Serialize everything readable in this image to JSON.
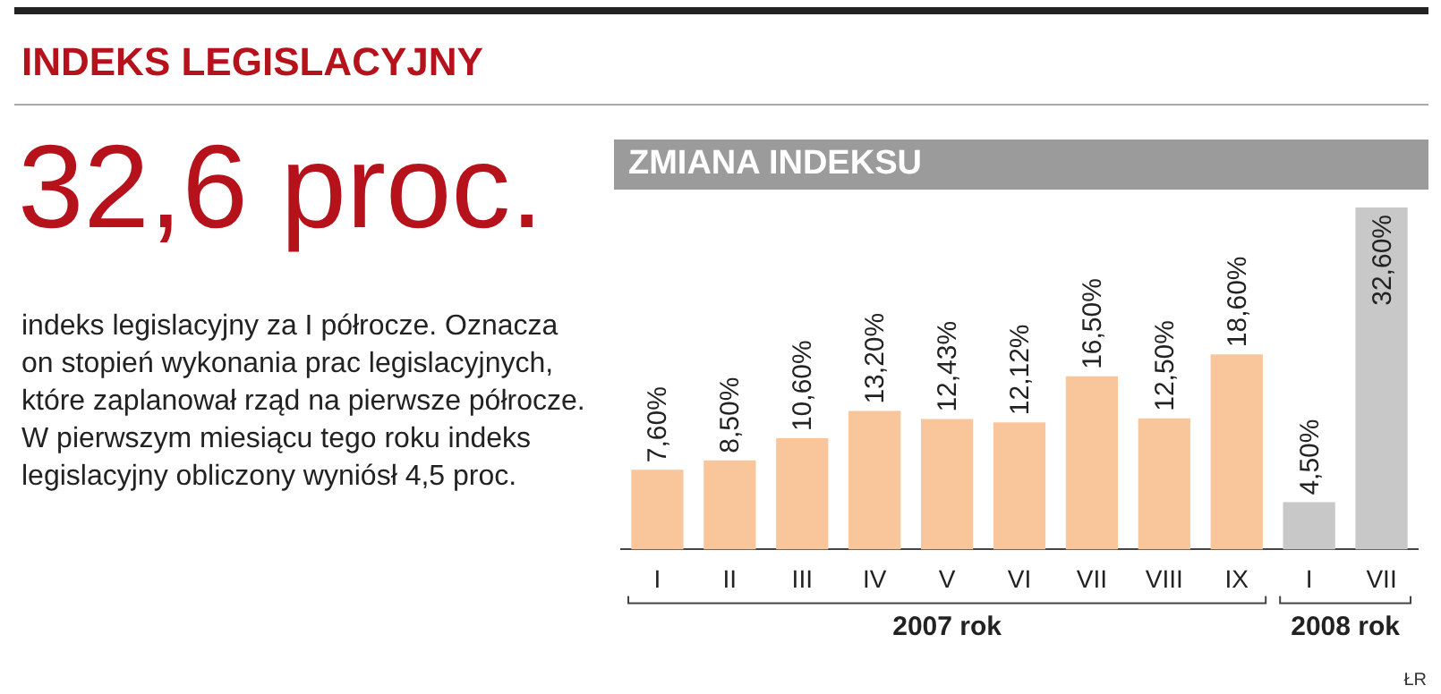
{
  "chart_data": {
    "type": "bar",
    "title": "INDEKS LEGISLACYJNY",
    "subtitle": "ZMIANA INDEKSU",
    "categories": [
      "I",
      "II",
      "III",
      "IV",
      "V",
      "VI",
      "VII",
      "VIII",
      "IX",
      "I",
      "VII"
    ],
    "values": [
      7.6,
      8.5,
      10.6,
      13.2,
      12.43,
      12.12,
      16.5,
      12.5,
      18.6,
      4.5,
      32.6
    ],
    "value_labels": [
      "7,60%",
      "8,50%",
      "10,60%",
      "13,20%",
      "12,43%",
      "12,12%",
      "16,50%",
      "12,50%",
      "18,60%",
      "4,50%",
      "32,60%"
    ],
    "colors": [
      "#f9c69c",
      "#f9c69c",
      "#f9c69c",
      "#f9c69c",
      "#f9c69c",
      "#f9c69c",
      "#f9c69c",
      "#f9c69c",
      "#f9c69c",
      "#c8c8c8",
      "#c8c8c8"
    ],
    "annotations": [
      "32,6 proc.",
      "indeks legislacyjny za I półrocze. Oznacza on stopień wykonania prac legislacyjnych, które zaplanował rząd na pierwsze półrocze. W pierwszym miesiącu tego roku indeks legislacyjny obliczony wyniósł 4,5 proc.",
      "2007 rok",
      "2008 rok",
      "ŁR"
    ],
    "grid": false,
    "legend": false
  }
}
